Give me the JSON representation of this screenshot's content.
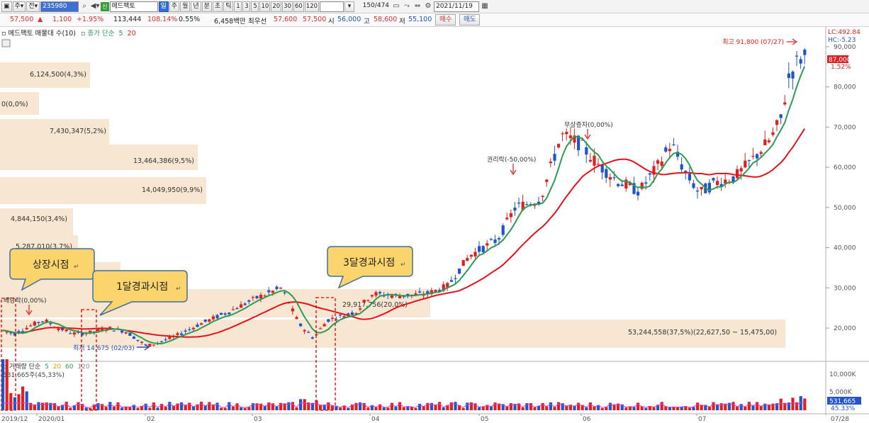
{
  "toolbar": {
    "period_label": "주",
    "type_label": "전",
    "stock_code": "235980",
    "stock_badge": "신",
    "stock_name": "메드팩토",
    "timeframes": [
      "일",
      "주",
      "월",
      "년",
      "분",
      "초",
      "틱"
    ],
    "selected_timeframe": "일",
    "intervals": [
      "1",
      "3",
      "5",
      "10",
      "20",
      "30",
      "60",
      "120"
    ],
    "paging": "150",
    "paging_total": "/474",
    "date": "2021/11/19"
  },
  "price_bar": {
    "price": "57,500",
    "change": "1,100",
    "change_pct": "+1.95%",
    "volume": "113,444",
    "vol_ratio": "108.14%",
    "turnover": "0.55%",
    "amount": "6,458백만",
    "best_ask_label": "최우선",
    "best_ask": "57,600",
    "best_bid": "57,500",
    "open_label": "시",
    "open": "56,000",
    "high_label": "고",
    "high": "58,600",
    "low_label": "저",
    "low": "55,100",
    "buy_label": "매수",
    "sell_label": "매도"
  },
  "chart_header": {
    "title": "메드팩토 매물대 수(10)",
    "ma_label": "종가 단순",
    "ma_periods": [
      "5",
      "20"
    ]
  },
  "price_axis": {
    "lc": "LC:492.84",
    "hc": "HC:-5.23",
    "current": "87,000",
    "current_pct": "1.52%",
    "ticks": [
      "90,000",
      "80,000",
      "70,000",
      "60,000",
      "50,000",
      "40,000",
      "30,000",
      "20,000"
    ]
  },
  "volume_profile": [
    {
      "label": "6,124,500(4,3%)"
    },
    {
      "label": "0(0,0%)"
    },
    {
      "label": "7,430,347(5,2%)"
    },
    {
      "label": "13,464,386(9,5%)"
    },
    {
      "label": "14,049,950(9,9%)"
    },
    {
      "label": "4,844,150(3,4%)"
    },
    {
      "label": "5,287,010(3,7%)"
    },
    {
      "label": "(5"
    },
    {
      "label": "29,917,756(20,0%)"
    },
    {
      "label": "53,244,558(37,5%)(22,627,50 ~ 15,475,00)"
    }
  ],
  "annotations": {
    "high_label": "최고 91,800 (07/27)",
    "low_label": "최저 14,675 (02/03)",
    "rights_label": "권리락(-50,00%)",
    "bonus_label": "무상증자(0,00%)",
    "dividend_label": "배당락(0,00%)"
  },
  "callouts": [
    {
      "text": "상장시점"
    },
    {
      "text": "1달경과시점"
    },
    {
      "text": "3달경과시점"
    }
  ],
  "volume_panel": {
    "legend_prefix": "거래량 단순",
    "ma_periods": [
      "5",
      "20",
      "60",
      "120"
    ],
    "value_label": "531,665주(45,33%)",
    "axis_ticks": [
      "10,000K",
      "5,000K"
    ],
    "current": "531,665",
    "current_pct": "45.33%"
  },
  "x_axis": {
    "labels": [
      "2019/12",
      "2020/01",
      "02",
      "03",
      "04",
      "05",
      "06",
      "07",
      "07/28"
    ]
  },
  "colors": {
    "up": "#e02020",
    "down": "#1f55c8",
    "ma5": "#2e9b54",
    "ma20": "#e8101a",
    "profile": "#f6e6d2",
    "callout_fill": "#fbd56b",
    "callout_stroke": "#3f6f9f"
  },
  "chart_data": {
    "type": "candlestick",
    "y_axis_ticks": [
      20000,
      30000,
      40000,
      50000,
      60000,
      70000,
      80000,
      90000
    ],
    "high": {
      "value": 91800,
      "date": "07/27"
    },
    "low": {
      "value": 14675,
      "date": "02/03"
    },
    "current_price": 87000,
    "series": [
      {
        "name": "종가 단순 5"
      },
      {
        "name": "종가 단순 20"
      }
    ]
  }
}
